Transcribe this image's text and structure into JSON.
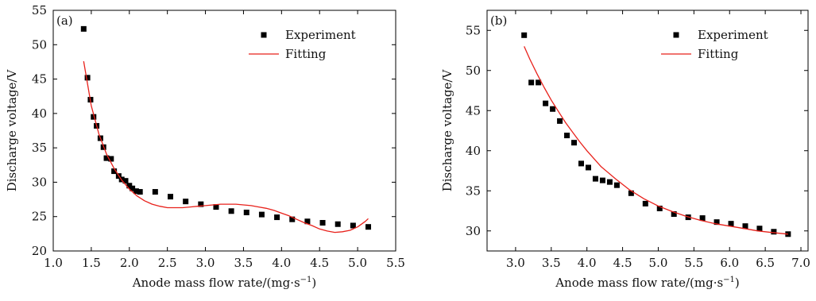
{
  "chart_data": [
    {
      "panel_label": "(a)",
      "type": "scatter",
      "xlabel": "Anode mass flow rate/(mg·s",
      "xlabel_sup": "−1",
      "xlabel_close": ")",
      "ylabel": "Discharge voltage/V",
      "xlim": [
        1.0,
        5.5
      ],
      "ylim": [
        20,
        55
      ],
      "xticks": [
        "1.0",
        "1.5",
        "2.0",
        "2.5",
        "3.0",
        "3.5",
        "4.0",
        "4.5",
        "5.0",
        "5.5"
      ],
      "yticks": [
        "20",
        "25",
        "30",
        "35",
        "40",
        "45",
        "50",
        "55"
      ],
      "grid": false,
      "legend_position": "top-right",
      "series": [
        {
          "name": "Experiment",
          "kind": "points",
          "color": "#000000",
          "x": [
            1.4,
            1.45,
            1.49,
            1.53,
            1.57,
            1.62,
            1.66,
            1.7,
            1.76,
            1.8,
            1.86,
            1.9,
            1.95,
            2.0,
            2.04,
            2.09,
            2.14,
            2.34,
            2.54,
            2.74,
            2.94,
            3.14,
            3.34,
            3.54,
            3.74,
            3.94,
            4.14,
            4.34,
            4.54,
            4.74,
            4.94,
            5.14
          ],
          "y": [
            52.3,
            45.2,
            42.0,
            39.5,
            38.2,
            36.4,
            35.1,
            33.5,
            33.4,
            31.6,
            30.9,
            30.4,
            30.2,
            29.5,
            29.1,
            28.7,
            28.6,
            28.6,
            27.9,
            27.2,
            26.8,
            26.4,
            25.8,
            25.6,
            25.3,
            24.9,
            24.6,
            24.3,
            24.1,
            23.9,
            23.7,
            23.5
          ]
        },
        {
          "name": "Fitting",
          "kind": "line",
          "color": "#e8211b",
          "x": [
            1.4,
            1.5,
            1.6,
            1.7,
            1.8,
            1.9,
            2.0,
            2.1,
            2.2,
            2.3,
            2.4,
            2.5,
            2.6,
            2.7,
            2.8,
            2.9,
            3.0,
            3.1,
            3.2,
            3.3,
            3.4,
            3.5,
            3.6,
            3.7,
            3.8,
            3.9,
            4.0,
            4.1,
            4.2,
            4.3,
            4.4,
            4.5,
            4.6,
            4.7,
            4.8,
            4.9,
            5.0,
            5.1,
            5.14
          ],
          "y": [
            47.6,
            41.1,
            37.0,
            34.1,
            32.0,
            30.3,
            29.0,
            28.0,
            27.3,
            26.8,
            26.5,
            26.3,
            26.3,
            26.3,
            26.4,
            26.5,
            26.6,
            26.7,
            26.8,
            26.8,
            26.8,
            26.7,
            26.6,
            26.4,
            26.2,
            25.9,
            25.5,
            25.1,
            24.6,
            24.1,
            23.7,
            23.2,
            22.9,
            22.7,
            22.8,
            23.0,
            23.5,
            24.3,
            24.7
          ]
        }
      ]
    },
    {
      "panel_label": "(b)",
      "type": "scatter",
      "xlabel": "Anode mass flow rate/(mg·s",
      "xlabel_sup": "−1",
      "xlabel_close": ")",
      "ylabel": "Discharge voltage/V",
      "xlim": [
        2.6,
        7.1
      ],
      "ylim": [
        27.5,
        57.5
      ],
      "xticks": [
        "3.0",
        "3.5",
        "4.0",
        "4.5",
        "5.0",
        "5.5",
        "6.0",
        "6.5",
        "7.0"
      ],
      "yticks": [
        "30",
        "35",
        "40",
        "45",
        "50",
        "55"
      ],
      "grid": false,
      "legend_position": "top-right",
      "series": [
        {
          "name": "Experiment",
          "kind": "points",
          "color": "#000000",
          "x": [
            3.12,
            3.22,
            3.32,
            3.42,
            3.52,
            3.62,
            3.72,
            3.82,
            3.92,
            4.02,
            4.12,
            4.22,
            4.32,
            4.42,
            4.62,
            4.82,
            5.02,
            5.22,
            5.42,
            5.62,
            5.82,
            6.02,
            6.22,
            6.42,
            6.62,
            6.82
          ],
          "y": [
            54.4,
            48.5,
            48.5,
            45.9,
            45.2,
            43.7,
            41.9,
            41.0,
            38.4,
            37.9,
            36.5,
            36.3,
            36.1,
            35.7,
            34.7,
            33.4,
            32.8,
            32.1,
            31.7,
            31.6,
            31.1,
            30.9,
            30.6,
            30.3,
            29.9,
            29.6
          ]
        },
        {
          "name": "Fitting",
          "kind": "line",
          "color": "#e8211b",
          "x": [
            3.12,
            3.2,
            3.3,
            3.4,
            3.5,
            3.6,
            3.7,
            3.8,
            3.9,
            4.0,
            4.2,
            4.4,
            4.6,
            4.8,
            5.0,
            5.2,
            5.4,
            5.6,
            5.8,
            6.0,
            6.2,
            6.4,
            6.6,
            6.82
          ],
          "y": [
            53.0,
            51.4,
            49.6,
            47.9,
            46.3,
            44.9,
            43.5,
            42.3,
            41.1,
            40.0,
            38.0,
            36.5,
            35.1,
            34.0,
            33.1,
            32.4,
            31.8,
            31.3,
            30.9,
            30.6,
            30.3,
            30.0,
            29.8,
            29.6
          ]
        }
      ]
    }
  ]
}
